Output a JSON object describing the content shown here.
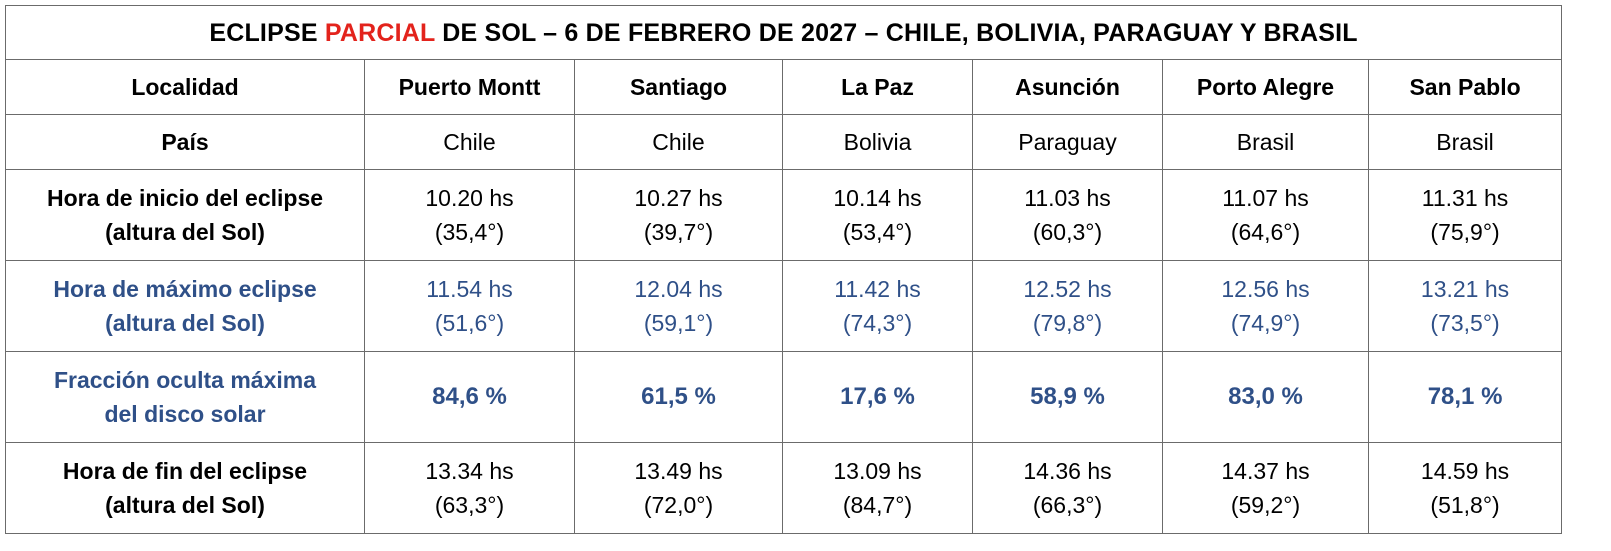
{
  "title": {
    "part1": "ECLIPSE ",
    "accent": "PARCIAL",
    "part2": " DE SOL – 6 DE FEBRERO DE 2027 – CHILE, BOLIVIA, PARAGUAY Y BRASIL"
  },
  "colors": {
    "accent": "#e3231c",
    "blue": "#2f5088",
    "border": "#6b6b6b"
  },
  "rows": {
    "localidad": {
      "label": "Localidad",
      "values": [
        "Puerto Montt",
        "Santiago",
        "La Paz",
        "Asunción",
        "Porto Alegre",
        "San Pablo"
      ]
    },
    "pais": {
      "label": "País",
      "values": [
        "Chile",
        "Chile",
        "Bolivia",
        "Paraguay",
        "Brasil",
        "Brasil"
      ]
    },
    "inicio": {
      "label_line1": "Hora de inicio del eclipse",
      "label_line2": "(altura del Sol)",
      "values": [
        {
          "time": "10.20 hs",
          "alt": "(35,4°)"
        },
        {
          "time": "10.27 hs",
          "alt": "(39,7°)"
        },
        {
          "time": "10.14 hs",
          "alt": "(53,4°)"
        },
        {
          "time": "11.03 hs",
          "alt": "(60,3°)"
        },
        {
          "time": "11.07 hs",
          "alt": "(64,6°)"
        },
        {
          "time": "11.31 hs",
          "alt": "(75,9°)"
        }
      ]
    },
    "maximo": {
      "label_line1": "Hora de máximo eclipse",
      "label_line2": "(altura del Sol)",
      "values": [
        {
          "time": "11.54 hs",
          "alt": "(51,6°)"
        },
        {
          "time": "12.04 hs",
          "alt": "(59,1°)"
        },
        {
          "time": "11.42 hs",
          "alt": "(74,3°)"
        },
        {
          "time": "12.52 hs",
          "alt": "(79,8°)"
        },
        {
          "time": "12.56 hs",
          "alt": "(74,9°)"
        },
        {
          "time": "13.21 hs",
          "alt": "(73,5°)"
        }
      ]
    },
    "fraccion": {
      "label_line1": "Fracción oculta máxima",
      "label_line2": "del disco solar",
      "values": [
        "84,6 %",
        "61,5 %",
        "17,6 %",
        "58,9 %",
        "83,0 %",
        "78,1 %"
      ]
    },
    "fin": {
      "label_line1": "Hora de fin del eclipse",
      "label_line2": "(altura del Sol)",
      "values": [
        {
          "time": "13.34 hs",
          "alt": "(63,3°)"
        },
        {
          "time": "13.49 hs",
          "alt": "(72,0°)"
        },
        {
          "time": "13.09 hs",
          "alt": "(84,7°)"
        },
        {
          "time": "14.36 hs",
          "alt": "(66,3°)"
        },
        {
          "time": "14.37 hs",
          "alt": "(59,2°)"
        },
        {
          "time": "14.59 hs",
          "alt": "(51,8°)"
        }
      ]
    }
  }
}
